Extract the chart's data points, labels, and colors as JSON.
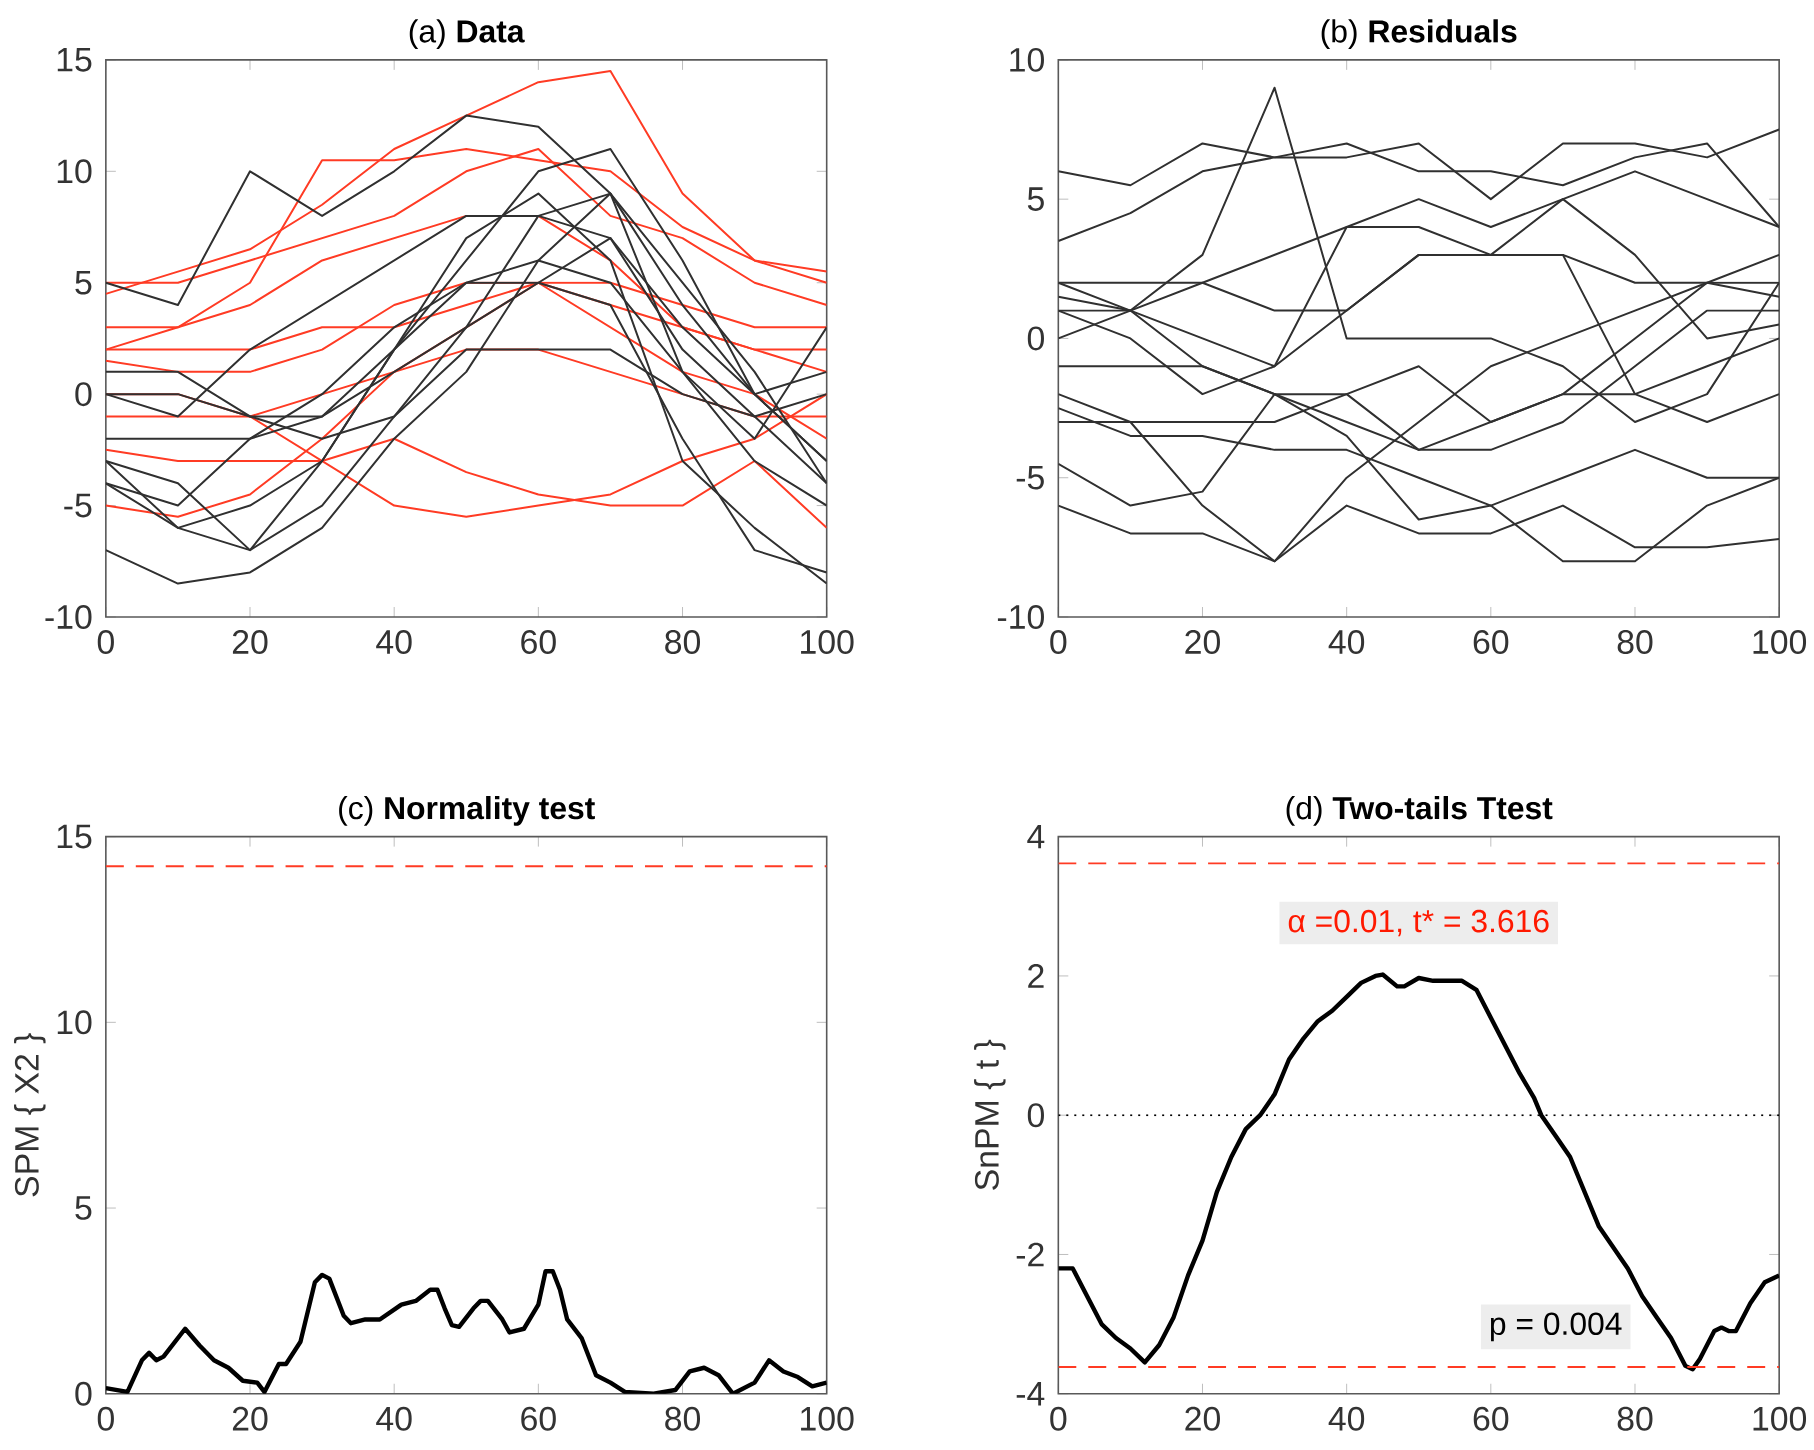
{
  "chart_data": [
    {
      "type": "line",
      "title": "(a) **Data**",
      "xlim": [
        0,
        100
      ],
      "xticks": [
        0,
        20,
        40,
        60,
        80,
        100
      ],
      "ylim": [
        -10,
        15
      ],
      "yticks": [
        -10,
        -5,
        0,
        5,
        10,
        15
      ],
      "grid": false,
      "marker": "none",
      "x": [
        0,
        10,
        20,
        30,
        40,
        50,
        60,
        70,
        80,
        90,
        100
      ],
      "series": [
        {
          "color": "#ff3b24",
          "values": [
            4.5,
            5.5,
            6.5,
            8.5,
            11,
            12.5,
            14,
            14.5,
            9,
            6,
            5
          ]
        },
        {
          "color": "#ff3b24",
          "values": [
            2,
            3,
            5,
            10.5,
            10.5,
            11,
            10.5,
            10,
            7.5,
            6,
            5.5
          ]
        },
        {
          "color": "#ff3b24",
          "values": [
            -5,
            -5.5,
            -4.5,
            -2,
            1,
            3,
            5,
            4,
            3,
            2,
            1
          ]
        },
        {
          "color": "#ff3b24",
          "values": [
            0,
            0,
            -1,
            -3,
            -5,
            -5.5,
            -5,
            -4.5,
            -3,
            -2,
            0
          ]
        },
        {
          "color": "#ff3b24",
          "values": [
            -2.5,
            -3,
            -3,
            -3,
            -2,
            -3.5,
            -4.5,
            -5,
            -5,
            -3,
            -6
          ]
        },
        {
          "color": "#ff3b24",
          "values": [
            3,
            3,
            4,
            6,
            7,
            8,
            8,
            6,
            3,
            2,
            2
          ]
        },
        {
          "color": "#ff3b24",
          "values": [
            1.5,
            1,
            1,
            2,
            4,
            5,
            5,
            5,
            4,
            3,
            3
          ]
        },
        {
          "color": "#ff3b24",
          "values": [
            -1,
            -1,
            -1,
            0,
            1,
            2,
            2,
            1,
            0,
            -1,
            -1
          ]
        },
        {
          "color": "#ff3b24",
          "values": [
            5,
            5,
            6,
            7,
            8,
            10,
            11,
            8,
            7,
            5,
            4
          ]
        },
        {
          "color": "#ff3b24",
          "values": [
            2,
            2,
            2,
            3,
            3,
            4,
            5,
            3,
            1,
            0,
            -2
          ]
        },
        {
          "color": "#303030",
          "values": [
            -7,
            -8.5,
            -8,
            -6,
            -2,
            1,
            6,
            9,
            4,
            0,
            -3
          ]
        },
        {
          "color": "#303030",
          "values": [
            -3,
            -6,
            -7,
            -5,
            -1,
            3,
            8,
            9,
            5,
            1,
            -4
          ]
        },
        {
          "color": "#303030",
          "values": [
            0,
            0,
            -1,
            -1,
            2,
            6,
            10,
            11,
            6,
            0,
            -3
          ]
        },
        {
          "color": "#303030",
          "values": [
            5,
            4,
            10,
            8,
            10,
            12.5,
            12,
            9,
            1,
            -3,
            -5
          ]
        },
        {
          "color": "#303030",
          "values": [
            -4,
            -6,
            -5,
            -3,
            2,
            7,
            9,
            6,
            -3,
            -6,
            -8.5
          ]
        },
        {
          "color": "#303030",
          "values": [
            -2,
            -2,
            -2,
            -1,
            1,
            3,
            5,
            7,
            2,
            -1,
            -4
          ]
        },
        {
          "color": "#303030",
          "values": [
            1,
            1,
            -1,
            -2,
            -1,
            2,
            2,
            2,
            0,
            -1,
            0
          ]
        },
        {
          "color": "#303030",
          "values": [
            -4,
            -5,
            -2,
            0,
            3,
            5,
            6,
            5,
            1,
            -2,
            3
          ]
        },
        {
          "color": "#303030",
          "values": [
            0,
            -1,
            2,
            4,
            6,
            8,
            8,
            7,
            3,
            0,
            1
          ]
        },
        {
          "color": "#303030",
          "values": [
            -3,
            -4,
            -7,
            -3,
            2,
            5,
            5,
            4,
            -2,
            -7,
            -8
          ]
        }
      ]
    },
    {
      "type": "line",
      "title": "(b) **Residuals**",
      "xlim": [
        0,
        100
      ],
      "xticks": [
        0,
        20,
        40,
        60,
        80,
        100
      ],
      "ylim": [
        -10,
        10
      ],
      "yticks": [
        -10,
        -5,
        0,
        5,
        10
      ],
      "grid": false,
      "marker": "none",
      "x": [
        0,
        10,
        20,
        30,
        40,
        50,
        60,
        70,
        80,
        90,
        100
      ],
      "series": [
        {
          "color": "#303030",
          "values": [
            6,
            5.5,
            7,
            6.5,
            6.5,
            7,
            5,
            7,
            7,
            6.5,
            7.5
          ]
        },
        {
          "color": "#303030",
          "values": [
            3.5,
            4.5,
            6,
            6.5,
            7,
            6,
            6,
            5.5,
            6.5,
            7,
            4
          ]
        },
        {
          "color": "#303030",
          "values": [
            -6,
            -7,
            -7,
            -8,
            -6,
            -7,
            -7,
            -6,
            -7.5,
            -7.5,
            -7.2
          ]
        },
        {
          "color": "#303030",
          "values": [
            -4.5,
            -6,
            -5.5,
            -2,
            -3.5,
            -6.5,
            -6,
            -8,
            -8,
            -6,
            -5
          ]
        },
        {
          "color": "#303030",
          "values": [
            1.5,
            1,
            2,
            3,
            4,
            4,
            3,
            5,
            6,
            5,
            4
          ]
        },
        {
          "color": "#303030",
          "values": [
            -2,
            -3,
            -3,
            -3,
            -2,
            -1,
            -3,
            -2,
            0,
            2,
            3
          ]
        },
        {
          "color": "#303030",
          "values": [
            1,
            1,
            -1,
            -2,
            -3,
            -4,
            -3,
            -2,
            -2,
            -1,
            0
          ]
        },
        {
          "color": "#303030",
          "values": [
            0,
            1,
            3,
            9,
            0,
            0,
            0,
            -1,
            -3,
            -2,
            2
          ]
        },
        {
          "color": "#303030",
          "values": [
            -3,
            -3,
            -6,
            -8,
            -5,
            -3,
            -1,
            0,
            1,
            2,
            2
          ]
        },
        {
          "color": "#303030",
          "values": [
            2,
            2,
            2,
            1,
            1,
            3,
            3,
            3,
            2,
            2,
            1.5
          ]
        },
        {
          "color": "#303030",
          "values": [
            -1,
            -1,
            -1,
            -2,
            -2,
            -4,
            -4,
            -3,
            -1,
            1,
            1
          ]
        },
        {
          "color": "#303030",
          "values": [
            2,
            1,
            0,
            -1,
            1,
            3,
            3,
            3,
            -2,
            -3,
            -2
          ]
        },
        {
          "color": "#303030",
          "values": [
            -2.5,
            -3.5,
            -3.5,
            -4,
            -4,
            -5,
            -6,
            -5,
            -4,
            -5,
            -5
          ]
        },
        {
          "color": "#303030",
          "values": [
            1,
            0,
            -2,
            -1,
            4,
            5,
            4,
            5,
            3,
            0,
            0.5
          ]
        }
      ]
    },
    {
      "type": "line",
      "title": "(c) **Normality test**",
      "ylabel": "SPM { X2 }",
      "xlim": [
        0,
        100
      ],
      "xticks": [
        0,
        20,
        40,
        60,
        80,
        100
      ],
      "ylim": [
        0,
        15
      ],
      "yticks": [
        0,
        5,
        10,
        15
      ],
      "grid": false,
      "marker": "none",
      "x": [
        0,
        3,
        5,
        6,
        7,
        8,
        11,
        13,
        15,
        17,
        19,
        21,
        22,
        24,
        25,
        27,
        29,
        30,
        31,
        33,
        34,
        36,
        38,
        41,
        43,
        45,
        46,
        47,
        48,
        49,
        51,
        52,
        53,
        55,
        56,
        58,
        60,
        61,
        62,
        63,
        64,
        66,
        68,
        70,
        72,
        76,
        79,
        81,
        83,
        85,
        87,
        90,
        92,
        94,
        96,
        98,
        100
      ],
      "series": [
        {
          "color": "#000000",
          "values": [
            0.15,
            0.05,
            0.9,
            1.1,
            0.9,
            1.0,
            1.75,
            1.3,
            0.9,
            0.7,
            0.35,
            0.3,
            0.05,
            0.8,
            0.8,
            1.4,
            3.0,
            3.2,
            3.1,
            2.1,
            1.9,
            2.0,
            2.0,
            2.4,
            2.5,
            2.8,
            2.8,
            2.3,
            1.85,
            1.8,
            2.3,
            2.5,
            2.5,
            2.0,
            1.65,
            1.75,
            2.4,
            3.3,
            3.3,
            2.8,
            2.0,
            1.5,
            0.5,
            0.3,
            0.05,
            0.0,
            0.1,
            0.6,
            0.7,
            0.5,
            0.0,
            0.3,
            0.9,
            0.6,
            0.45,
            0.2,
            0.3
          ]
        }
      ],
      "ref_lines": [
        {
          "axis": "y",
          "value": 14.2,
          "color": "#ff3b24",
          "line_style": "dashed"
        }
      ]
    },
    {
      "type": "line",
      "title": "(d) **Two-tails Ttest**",
      "ylabel": "SnPM { t }",
      "xlim": [
        0,
        100
      ],
      "xticks": [
        0,
        20,
        40,
        60,
        80,
        100
      ],
      "ylim": [
        -4,
        4
      ],
      "yticks": [
        -4,
        -2,
        0,
        2,
        4
      ],
      "grid": false,
      "marker": "none",
      "x": [
        0,
        2,
        4,
        6,
        8,
        10,
        12,
        14,
        16,
        18,
        20,
        22,
        24,
        26,
        28,
        30,
        32,
        34,
        36,
        38,
        40,
        42,
        44,
        45,
        47,
        48,
        50,
        52,
        54,
        56,
        58,
        60,
        62,
        64,
        66,
        67,
        69,
        71,
        73,
        75,
        77,
        79,
        81,
        83,
        85,
        87,
        88,
        89,
        91,
        92,
        93,
        94,
        96,
        98,
        100
      ],
      "series": [
        {
          "color": "#000000",
          "values": [
            -2.2,
            -2.2,
            -2.6,
            -3.0,
            -3.2,
            -3.35,
            -3.55,
            -3.3,
            -2.9,
            -2.3,
            -1.8,
            -1.1,
            -0.6,
            -0.2,
            0.0,
            0.3,
            0.8,
            1.1,
            1.35,
            1.5,
            1.7,
            1.9,
            2.0,
            2.02,
            1.85,
            1.85,
            1.97,
            1.93,
            1.93,
            1.93,
            1.8,
            1.4,
            1.0,
            0.6,
            0.25,
            0.0,
            -0.3,
            -0.6,
            -1.1,
            -1.6,
            -1.9,
            -2.2,
            -2.6,
            -2.9,
            -3.2,
            -3.6,
            -3.65,
            -3.5,
            -3.1,
            -3.05,
            -3.1,
            -3.1,
            -2.7,
            -2.4,
            -2.3
          ]
        }
      ],
      "ref_lines": [
        {
          "axis": "y",
          "value": 3.616,
          "color": "#ff3b24",
          "line_style": "dashed"
        },
        {
          "axis": "y",
          "value": -3.616,
          "color": "#ff3b24",
          "line_style": "dashed"
        },
        {
          "axis": "y",
          "value": 0,
          "color": "#000000",
          "line_style": "dotted"
        }
      ],
      "annotations": [
        "α =0.01, t* = 3.616",
        "p = 0.004"
      ]
    }
  ]
}
